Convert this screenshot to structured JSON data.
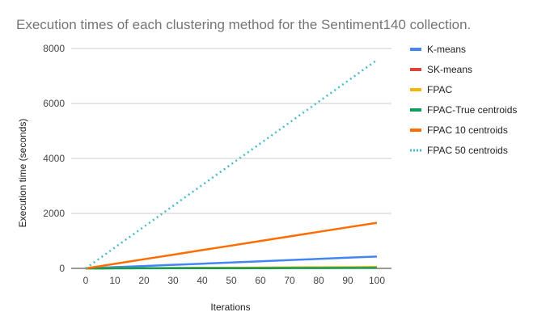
{
  "chart_data": {
    "type": "line",
    "title": "Execution times of each clustering method for the Sentiment140 collection.",
    "xlabel": "Iterations",
    "ylabel": "Execution time (seconds)",
    "x": [
      0,
      10,
      20,
      30,
      40,
      50,
      60,
      70,
      80,
      90,
      100
    ],
    "xlim": [
      0,
      100
    ],
    "ylim": [
      0,
      8000
    ],
    "yticks": [
      0,
      2000,
      4000,
      6000,
      8000
    ],
    "xticks": [
      0,
      10,
      20,
      30,
      40,
      50,
      60,
      70,
      80,
      90,
      100
    ],
    "grid": true,
    "legend_position": "right",
    "series": [
      {
        "name": "K-means",
        "color": "#4285f4",
        "dash": "solid",
        "values": [
          0,
          43,
          86,
          129,
          172,
          215,
          258,
          301,
          344,
          387,
          430
        ]
      },
      {
        "name": "SK-means",
        "color": "#db4437",
        "dash": "solid",
        "values": [
          0,
          3,
          6,
          9,
          12,
          15,
          18,
          21,
          24,
          27,
          30
        ]
      },
      {
        "name": "FPAC",
        "color": "#f4b400",
        "dash": "solid",
        "values": [
          0,
          5,
          10,
          15,
          20,
          25,
          30,
          35,
          40,
          45,
          50
        ]
      },
      {
        "name": "FPAC-True centroids",
        "color": "#0f9d58",
        "dash": "solid",
        "values": [
          0,
          1.5,
          3,
          4.5,
          6,
          7.5,
          9,
          10.5,
          12,
          13.5,
          15
        ]
      },
      {
        "name": "FPAC 10 centroids",
        "color": "#ff6d00",
        "dash": "solid",
        "values": [
          0,
          166,
          332,
          498,
          664,
          830,
          996,
          1162,
          1328,
          1494,
          1660
        ]
      },
      {
        "name": "FPAC 50 centroids",
        "color": "#46bdc6",
        "dash": "dotted",
        "values": [
          0,
          758,
          1516,
          2274,
          3032,
          3790,
          4548,
          5306,
          6064,
          6822,
          7580
        ]
      }
    ]
  }
}
